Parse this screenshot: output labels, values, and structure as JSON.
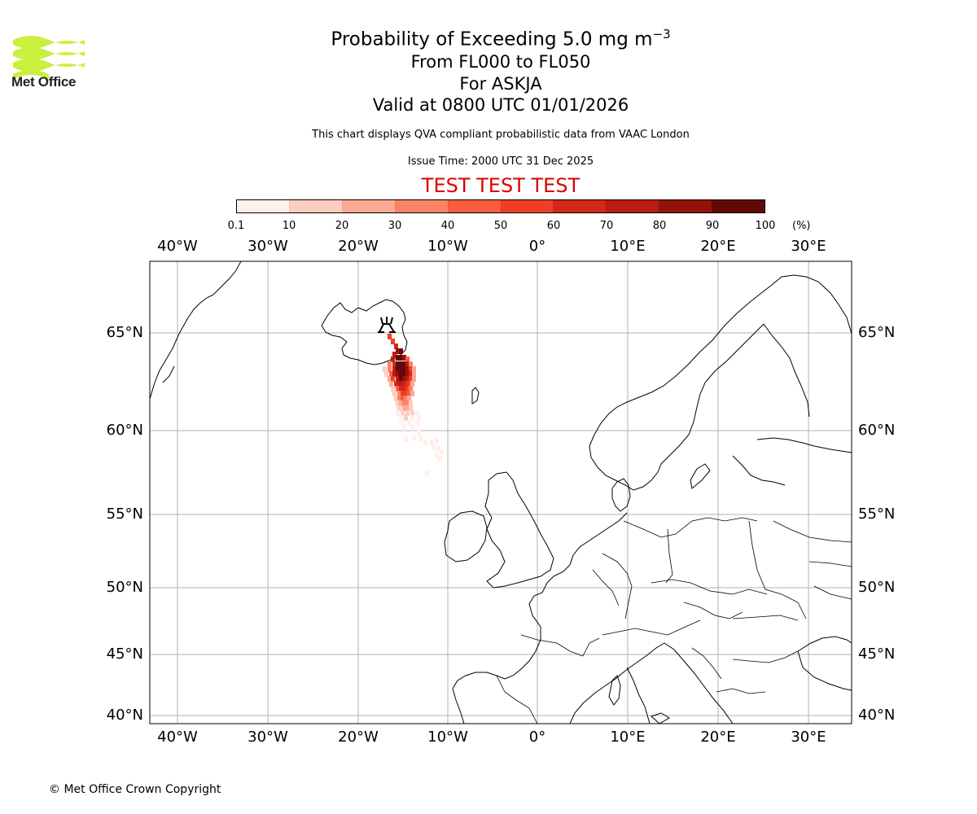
{
  "logo": {
    "text": "Met Office",
    "color": "#c8f03c"
  },
  "header": {
    "title_main": "Probability of Exceeding 5.0 mg m",
    "title_sup": "−3",
    "flight_levels": "From FL000 to FL050",
    "volcano": "For ASKJA",
    "valid": "Valid at 0800 UTC 01/01/2026",
    "description": "This chart displays QVA compliant probabilistic data from VAAC London",
    "issue_time": "Issue Time: 2000 UTC 31 Dec 2025",
    "test_banner": "TEST TEST TEST"
  },
  "colorbar": {
    "ticks": [
      "0.1",
      "10",
      "20",
      "30",
      "40",
      "50",
      "60",
      "70",
      "80",
      "90",
      "100"
    ],
    "unit": "(%)",
    "colors": [
      "#fff0ec",
      "#fdcdc0",
      "#fca994",
      "#fb8466",
      "#f95c3f",
      "#f03e24",
      "#d5281a",
      "#b91c13",
      "#931308",
      "#640a06"
    ]
  },
  "axes": {
    "lon_labels": [
      "40°W",
      "30°W",
      "20°W",
      "10°W",
      "0°",
      "10°E",
      "20°E",
      "30°E"
    ],
    "lat_labels": [
      "65°N",
      "60°N",
      "55°N",
      "50°N",
      "45°N",
      "40°N"
    ]
  },
  "footer": {
    "copyright": "© Met Office Crown Copyright"
  }
}
